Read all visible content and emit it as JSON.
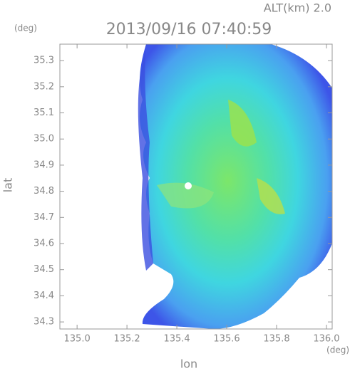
{
  "chart_data": {
    "type": "radar",
    "title": "2013/09/16 07:40:59",
    "subtitle": "ALT(km) 2.0",
    "x_label": "lon",
    "y_label": "lat",
    "x_unit": "(deg)",
    "y_unit": "(deg)",
    "xlim": [
      134.931,
      136.023
    ],
    "ylim": [
      34.273,
      35.363
    ],
    "xticks": [
      {
        "value": 135.0,
        "label": "135.0"
      },
      135.2,
      135.4,
      135.6,
      135.8,
      {
        "value": 136.0,
        "label": "136.0"
      }
    ],
    "yticks": [
      34.3,
      34.4,
      34.5,
      34.6,
      34.7,
      34.8,
      34.9,
      {
        "value": 35.0,
        "label": "35.0"
      },
      35.1,
      35.2,
      35.3
    ]
  }
}
